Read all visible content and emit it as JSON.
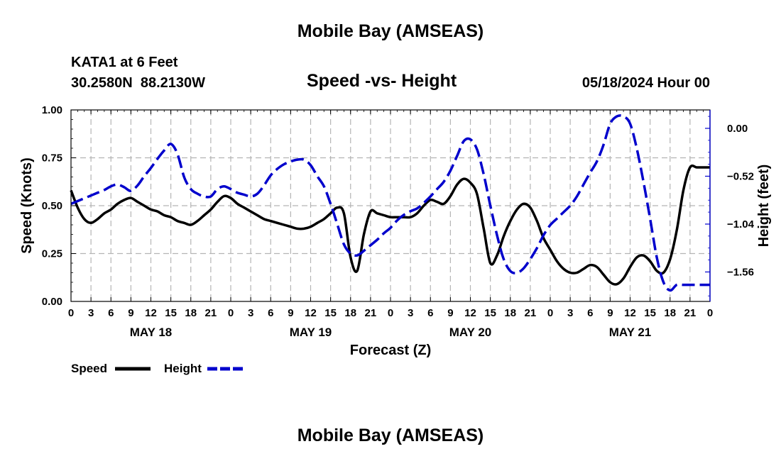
{
  "page": {
    "title": "Mobile Bay (AMSEAS)",
    "station": "KATA1 at 6 Feet",
    "coords": "30.2580N  88.2130W",
    "subtitle": "Speed -vs- Height",
    "timestamp": "05/18/2024 Hour 00",
    "footer_title": "Mobile Bay (AMSEAS)"
  },
  "colors": {
    "speed": "#000000",
    "height": "#0000cc",
    "grid": "#b4b4b4"
  },
  "chart_data": {
    "type": "line",
    "title": "Speed -vs- Height",
    "xlabel": "Forecast (Z)",
    "ylabel": "Speed (Knots)",
    "y2label": "Height (feet)",
    "xlim": [
      0,
      96
    ],
    "ylim": [
      0,
      1
    ],
    "y2lim": [
      -1.88,
      0.2
    ],
    "x_tick_labels": [
      "0",
      "3",
      "6",
      "9",
      "12",
      "15",
      "18",
      "21",
      "0",
      "3",
      "6",
      "9",
      "12",
      "15",
      "18",
      "21",
      "0",
      "3",
      "6",
      "9",
      "12",
      "15",
      "18",
      "21",
      "0",
      "3",
      "6",
      "9",
      "12",
      "15",
      "18",
      "21",
      "0"
    ],
    "day_labels": [
      {
        "x": 12,
        "label": "MAY 18"
      },
      {
        "x": 36,
        "label": "MAY 19"
      },
      {
        "x": 60,
        "label": "MAY 20"
      },
      {
        "x": 84,
        "label": "MAY 21"
      }
    ],
    "y_ticks": [
      0.0,
      0.25,
      0.5,
      0.75,
      1.0
    ],
    "y_tick_labels": [
      "0.00",
      "0.25",
      "0.50",
      "0.75",
      "1.00"
    ],
    "y2_ticks": [
      0.0,
      -0.52,
      -1.04,
      -1.56
    ],
    "y2_tick_labels": [
      "0.00",
      "−0.52",
      "−1.04",
      "−1.56"
    ],
    "grid": true,
    "legend": [
      {
        "name": "Speed",
        "style": "solid"
      },
      {
        "name": "Height",
        "style": "dashed"
      }
    ],
    "series": [
      {
        "name": "Speed",
        "axis": "left",
        "style": "solid",
        "x": [
          0,
          1,
          2,
          3,
          4,
          5,
          6,
          7,
          8,
          9,
          10,
          11,
          12,
          13,
          14,
          15,
          16,
          17,
          18,
          19,
          20,
          21,
          22,
          23,
          24,
          25,
          26,
          27,
          28,
          29,
          30,
          31,
          32,
          33,
          34,
          35,
          36,
          37,
          38,
          39,
          40,
          41,
          42,
          43,
          44,
          45,
          46,
          47,
          48,
          49,
          50,
          51,
          52,
          53,
          54,
          55,
          56,
          57,
          58,
          59,
          60,
          61,
          62,
          63,
          64,
          65,
          66,
          67,
          68,
          69,
          70,
          71,
          72,
          73,
          74,
          75,
          76,
          77,
          78,
          79,
          80,
          81,
          82,
          83,
          84,
          85,
          86,
          87,
          88,
          89,
          90,
          91,
          92,
          93,
          94,
          95,
          96
        ],
        "values": [
          0.58,
          0.49,
          0.43,
          0.41,
          0.43,
          0.46,
          0.48,
          0.51,
          0.53,
          0.54,
          0.52,
          0.5,
          0.48,
          0.47,
          0.45,
          0.44,
          0.42,
          0.41,
          0.4,
          0.42,
          0.45,
          0.48,
          0.52,
          0.55,
          0.54,
          0.51,
          0.49,
          0.47,
          0.45,
          0.43,
          0.42,
          0.41,
          0.4,
          0.39,
          0.38,
          0.38,
          0.39,
          0.41,
          0.43,
          0.46,
          0.49,
          0.46,
          0.23,
          0.16,
          0.35,
          0.47,
          0.46,
          0.45,
          0.44,
          0.44,
          0.44,
          0.44,
          0.46,
          0.5,
          0.53,
          0.52,
          0.51,
          0.55,
          0.61,
          0.64,
          0.62,
          0.56,
          0.38,
          0.2,
          0.24,
          0.34,
          0.42,
          0.48,
          0.51,
          0.49,
          0.42,
          0.33,
          0.27,
          0.21,
          0.17,
          0.15,
          0.15,
          0.17,
          0.19,
          0.18,
          0.14,
          0.1,
          0.09,
          0.12,
          0.18,
          0.23,
          0.24,
          0.21,
          0.16,
          0.15,
          0.22,
          0.37,
          0.58,
          0.7,
          0.7,
          0.7,
          0.7
        ]
      },
      {
        "name": "Height",
        "axis": "right",
        "style": "dashed",
        "x": [
          0,
          1,
          2,
          3,
          4,
          5,
          6,
          7,
          8,
          9,
          10,
          11,
          12,
          13,
          14,
          15,
          16,
          17,
          18,
          19,
          20,
          21,
          22,
          23,
          24,
          25,
          26,
          27,
          28,
          29,
          30,
          31,
          32,
          33,
          34,
          35,
          36,
          37,
          38,
          39,
          40,
          41,
          42,
          43,
          44,
          45,
          46,
          47,
          48,
          49,
          50,
          51,
          52,
          53,
          54,
          55,
          56,
          57,
          58,
          59,
          60,
          61,
          62,
          63,
          64,
          65,
          66,
          67,
          68,
          69,
          70,
          71,
          72,
          73,
          74,
          75,
          76,
          77,
          78,
          79,
          80,
          81,
          82,
          83,
          84,
          85,
          86,
          87,
          88,
          89,
          90,
          91,
          92,
          93,
          94,
          95,
          96
        ],
        "values": [
          -0.82,
          -0.79,
          -0.76,
          -0.73,
          -0.7,
          -0.67,
          -0.63,
          -0.61,
          -0.64,
          -0.68,
          -0.62,
          -0.52,
          -0.43,
          -0.33,
          -0.24,
          -0.17,
          -0.28,
          -0.53,
          -0.66,
          -0.71,
          -0.74,
          -0.74,
          -0.66,
          -0.63,
          -0.66,
          -0.7,
          -0.72,
          -0.74,
          -0.71,
          -0.62,
          -0.51,
          -0.44,
          -0.39,
          -0.36,
          -0.34,
          -0.34,
          -0.4,
          -0.52,
          -0.63,
          -0.82,
          -1.04,
          -1.26,
          -1.36,
          -1.38,
          -1.33,
          -1.27,
          -1.21,
          -1.14,
          -1.08,
          -1.0,
          -0.94,
          -0.9,
          -0.87,
          -0.81,
          -0.74,
          -0.66,
          -0.58,
          -0.46,
          -0.3,
          -0.14,
          -0.12,
          -0.23,
          -0.5,
          -0.84,
          -1.16,
          -1.42,
          -1.55,
          -1.57,
          -1.52,
          -1.42,
          -1.3,
          -1.16,
          -1.05,
          -0.98,
          -0.91,
          -0.84,
          -0.74,
          -0.61,
          -0.48,
          -0.36,
          -0.18,
          0.05,
          0.13,
          0.13,
          0.05,
          -0.22,
          -0.58,
          -0.98,
          -1.4,
          -1.67,
          -1.76,
          -1.7,
          -1.7,
          -1.7,
          -1.7,
          -1.7,
          -1.7
        ]
      }
    ]
  }
}
